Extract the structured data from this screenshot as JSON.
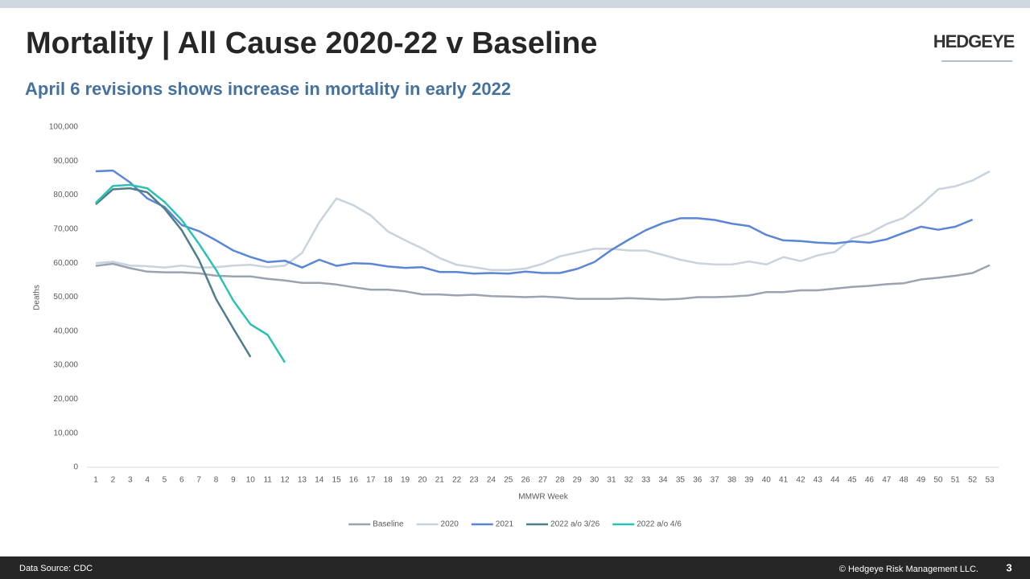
{
  "header": {
    "title": "Mortality | All Cause 2020-22 v Baseline",
    "subtitle": "April 6 revisions shows increase in mortality in early 2022",
    "logo": "HEDGEYE"
  },
  "footer": {
    "source": "Data Source: CDC",
    "copyright": "© Hedgeye Risk Management LLC.",
    "page": "3"
  },
  "chart_data": {
    "type": "line",
    "y_label": "Deaths",
    "x_label": "MMWR Week",
    "categories": [
      1,
      2,
      3,
      4,
      5,
      6,
      7,
      8,
      9,
      10,
      11,
      12,
      13,
      14,
      15,
      16,
      17,
      18,
      19,
      20,
      21,
      22,
      23,
      24,
      25,
      26,
      27,
      28,
      29,
      30,
      31,
      32,
      33,
      34,
      35,
      36,
      37,
      38,
      39,
      40,
      41,
      42,
      43,
      44,
      45,
      46,
      47,
      48,
      49,
      50,
      51,
      52,
      53
    ],
    "ylim": [
      0,
      100000
    ],
    "yticks": [
      0,
      {
        "value": 10000,
        "label": "10,000"
      },
      {
        "value": 20000,
        "label": "20,000"
      },
      {
        "value": 30000,
        "label": "30,000"
      },
      {
        "value": 40000,
        "label": "40,000"
      },
      {
        "value": 50000,
        "label": "50,000"
      },
      {
        "value": 60000,
        "label": "60,000"
      },
      {
        "value": 70000,
        "label": "70,000"
      },
      {
        "value": 80000,
        "label": "80,000"
      },
      {
        "value": 90000,
        "label": "90,000"
      },
      {
        "value": 100000,
        "label": "100,000"
      }
    ],
    "grid": false,
    "legend": "bottom",
    "series": [
      {
        "name": "Baseline",
        "color": "#9aa4b0",
        "values": [
          59200,
          59800,
          58500,
          57500,
          57300,
          57300,
          57000,
          56300,
          56100,
          56100,
          55400,
          54900,
          54200,
          54200,
          53700,
          52900,
          52200,
          52200,
          51700,
          50800,
          50800,
          50500,
          50700,
          50300,
          50200,
          50000,
          50200,
          49900,
          49500,
          49500,
          49500,
          49700,
          49500,
          49300,
          49500,
          50000,
          50000,
          50200,
          50500,
          51500,
          51500,
          52000,
          52000,
          52500,
          53000,
          53300,
          53800,
          54100,
          55200,
          55700,
          56300,
          57100,
          59400
        ]
      },
      {
        "name": "2020",
        "color": "#c9d3dd",
        "values": [
          60000,
          60400,
          59300,
          59100,
          58700,
          59300,
          58700,
          58800,
          59300,
          59500,
          58800,
          59300,
          63000,
          72000,
          79000,
          77000,
          74000,
          69300,
          66700,
          64300,
          61500,
          59500,
          58800,
          58000,
          58000,
          58400,
          59800,
          62000,
          63100,
          64200,
          64200,
          63700,
          63700,
          62400,
          61000,
          60000,
          59600,
          59600,
          60500,
          59600,
          61800,
          60600,
          62300,
          63300,
          67300,
          68800,
          71500,
          73300,
          77100,
          81700,
          82600,
          84300,
          87000
        ]
      },
      {
        "name": "2021",
        "color": "#5b86d8",
        "values": [
          87000,
          87200,
          83700,
          79000,
          76500,
          71200,
          69400,
          66700,
          63700,
          61800,
          60300,
          60700,
          58700,
          61000,
          59200,
          60000,
          59800,
          59000,
          58600,
          58800,
          57400,
          57400,
          56900,
          57100,
          56900,
          57500,
          57100,
          57100,
          58300,
          60300,
          63900,
          66900,
          69700,
          71800,
          73200,
          73200,
          72700,
          71600,
          70900,
          68300,
          66700,
          66500,
          66000,
          65800,
          66400,
          66000,
          67000,
          68900,
          70700,
          69800,
          70700,
          72800,
          null
        ]
      },
      {
        "name": "2022 a/o 3/26",
        "color": "#4e7e8a",
        "values": [
          77300,
          81700,
          82000,
          80800,
          76000,
          69700,
          61000,
          49400,
          40800,
          32400,
          null,
          null,
          null,
          null,
          null,
          null,
          null,
          null,
          null,
          null,
          null,
          null,
          null,
          null,
          null,
          null,
          null,
          null,
          null,
          null,
          null,
          null,
          null,
          null,
          null,
          null,
          null,
          null,
          null,
          null,
          null,
          null,
          null,
          null,
          null,
          null,
          null,
          null,
          null,
          null,
          null,
          null,
          null
        ]
      },
      {
        "name": "2022 a/o 4/6",
        "color": "#2cc1b2",
        "values": [
          77700,
          82700,
          83000,
          82000,
          78000,
          72700,
          65700,
          58000,
          49000,
          42000,
          38900,
          30800,
          null,
          null,
          null,
          null,
          null,
          null,
          null,
          null,
          null,
          null,
          null,
          null,
          null,
          null,
          null,
          null,
          null,
          null,
          null,
          null,
          null,
          null,
          null,
          null,
          null,
          null,
          null,
          null,
          null,
          null,
          null,
          null,
          null,
          null,
          null,
          null,
          null,
          null,
          null,
          null,
          null
        ]
      }
    ]
  }
}
